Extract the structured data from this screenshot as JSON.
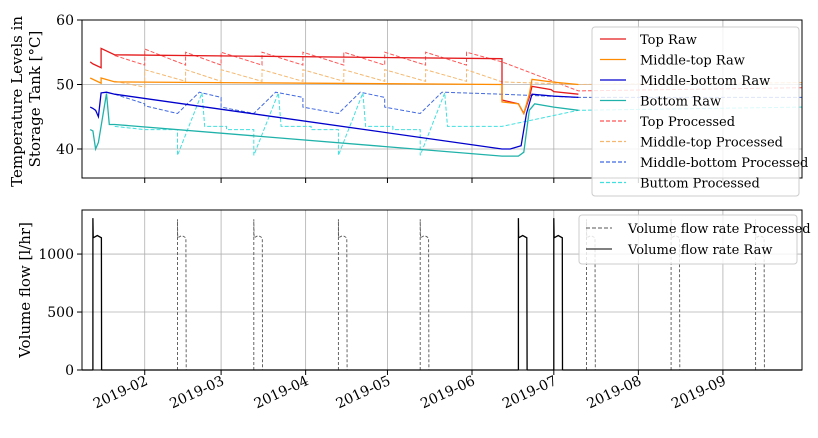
{
  "chart_data": [
    {
      "type": "line",
      "ylabel_lines": [
        "Temperature Levels in",
        "Storage Tank [°C]"
      ],
      "ylim": [
        35.5,
        60
      ],
      "yticks": [
        40,
        50,
        60
      ],
      "grid": true,
      "legend_position": "top-right",
      "series": [
        {
          "name": "Top Raw",
          "color": "#e41a1c",
          "dash": "solid",
          "x": [
            "2019-01-12",
            "2019-01-13",
            "2019-01-14",
            "2019-01-16",
            "2019-01-16",
            "2019-01-21",
            "2019-06-12",
            "2019-06-12",
            "2019-06-18",
            "2019-06-20",
            "2019-06-22",
            "2019-06-23",
            "2019-06-30",
            "2019-07-01",
            "2019-07-10"
          ],
          "y": [
            53.5,
            53.2,
            53.0,
            52.6,
            55.6,
            54.6,
            54.0,
            47.6,
            47.0,
            45.5,
            48.0,
            49.7,
            49.2,
            48.9,
            48.5
          ]
        },
        {
          "name": "Middle-top Raw",
          "color": "#ff8c00",
          "dash": "solid",
          "x": [
            "2019-01-12",
            "2019-01-16",
            "2019-01-16",
            "2019-01-21",
            "2019-06-12",
            "2019-06-12",
            "2019-06-18",
            "2019-06-20",
            "2019-06-22",
            "2019-06-23",
            "2019-06-30",
            "2019-07-10"
          ],
          "y": [
            51.0,
            50.2,
            51.0,
            50.4,
            50.0,
            47.3,
            47.0,
            45.5,
            48.5,
            50.8,
            50.4,
            50.0
          ]
        },
        {
          "name": "Middle-bottom Raw",
          "color": "#0000cd",
          "dash": "solid",
          "x": [
            "2019-01-12",
            "2019-01-13",
            "2019-01-14",
            "2019-01-15",
            "2019-01-16",
            "2019-01-18",
            "2019-01-21",
            "2019-06-12",
            "2019-06-15",
            "2019-06-19",
            "2019-06-21",
            "2019-06-23",
            "2019-07-01",
            "2019-07-10"
          ],
          "y": [
            46.5,
            46.3,
            46.0,
            45.0,
            48.7,
            48.8,
            48.5,
            40.0,
            40.0,
            40.5,
            45.5,
            48.5,
            48.2,
            48.0
          ]
        },
        {
          "name": "Bottom Raw",
          "color": "#20b2aa",
          "dash": "solid",
          "x": [
            "2019-01-12",
            "2019-01-13",
            "2019-01-14",
            "2019-01-15",
            "2019-01-18",
            "2019-01-19",
            "2019-01-21",
            "2019-06-12",
            "2019-06-18",
            "2019-06-20",
            "2019-06-22",
            "2019-06-24",
            "2019-07-01",
            "2019-07-10"
          ],
          "y": [
            43.0,
            42.8,
            40.0,
            41.0,
            48.6,
            43.8,
            43.8,
            38.9,
            38.9,
            39.5,
            46.0,
            47.0,
            46.5,
            46.0
          ]
        },
        {
          "name": "Top Processed",
          "color": "#ff5555",
          "dash": "dashed",
          "x": [
            "2019-01-21",
            "2019-02-01",
            "2019-02-01",
            "2019-02-16",
            "2019-02-16",
            "2019-03-01",
            "2019-03-01",
            "2019-03-16",
            "2019-03-16",
            "2019-03-31",
            "2019-03-31",
            "2019-04-15",
            "2019-04-15",
            "2019-04-30",
            "2019-04-30",
            "2019-05-15",
            "2019-05-15",
            "2019-05-30",
            "2019-05-30",
            "2019-06-12",
            "2019-07-10",
            "2019-09-30"
          ],
          "y": [
            54.5,
            53.0,
            55.5,
            53.0,
            55.0,
            53.0,
            55.0,
            53.0,
            55.0,
            53.0,
            55.0,
            53.0,
            55.0,
            53.0,
            55.0,
            53.0,
            55.0,
            53.0,
            55.0,
            53.5,
            49.0,
            49.5
          ]
        },
        {
          "name": "Middle-top Processed",
          "color": "#f4b870",
          "dash": "dashed",
          "x": [
            "2019-01-21",
            "2019-02-01",
            "2019-02-01",
            "2019-02-16",
            "2019-02-16",
            "2019-03-01",
            "2019-03-01",
            "2019-03-16",
            "2019-03-16",
            "2019-03-31",
            "2019-03-31",
            "2019-04-15",
            "2019-04-15",
            "2019-04-30",
            "2019-04-30",
            "2019-05-15",
            "2019-05-15",
            "2019-05-30",
            "2019-05-30",
            "2019-06-12",
            "2019-07-10",
            "2019-09-30"
          ],
          "y": [
            50.5,
            49.6,
            52.3,
            50.5,
            52.3,
            50.5,
            52.3,
            50.5,
            52.3,
            50.5,
            52.3,
            50.5,
            52.3,
            50.5,
            52.3,
            50.5,
            52.3,
            50.5,
            52.3,
            50.4,
            50.0,
            50.3
          ]
        },
        {
          "name": "Middle-bottom Processed",
          "color": "#4169e1",
          "dash": "dashed",
          "x": [
            "2019-01-21",
            "2019-02-01",
            "2019-02-01",
            "2019-02-13",
            "2019-02-21",
            "2019-03-01",
            "2019-03-01",
            "2019-03-13",
            "2019-03-21",
            "2019-03-31",
            "2019-03-31",
            "2019-04-13",
            "2019-04-21",
            "2019-04-30",
            "2019-04-30",
            "2019-05-13",
            "2019-05-21",
            "2019-06-12",
            "2019-07-10",
            "2019-09-30"
          ],
          "y": [
            48.5,
            47.0,
            46.7,
            45.5,
            48.8,
            48.0,
            46.5,
            45.5,
            48.8,
            48.0,
            46.5,
            45.5,
            48.8,
            48.0,
            46.5,
            45.5,
            48.8,
            48.5,
            48.0,
            48.0
          ]
        },
        {
          "name": "Buttom Processed",
          "color": "#40e0e0",
          "dash": "dashed",
          "x": [
            "2019-01-21",
            "2019-02-01",
            "2019-02-01",
            "2019-02-13",
            "2019-02-13",
            "2019-02-22",
            "2019-02-23",
            "2019-03-03",
            "2019-03-03",
            "2019-03-13",
            "2019-03-13",
            "2019-03-22",
            "2019-03-23",
            "2019-04-03",
            "2019-04-03",
            "2019-04-13",
            "2019-04-13",
            "2019-04-22",
            "2019-04-23",
            "2019-05-03",
            "2019-05-03",
            "2019-05-13",
            "2019-05-13",
            "2019-05-22",
            "2019-05-23",
            "2019-06-12",
            "2019-07-10",
            "2019-09-30"
          ],
          "y": [
            43.5,
            43.0,
            43.0,
            43.0,
            39.0,
            48.7,
            43.5,
            43.5,
            43.0,
            43.0,
            39.0,
            48.7,
            43.5,
            43.5,
            43.0,
            43.0,
            39.0,
            48.7,
            43.5,
            43.5,
            43.0,
            43.0,
            39.0,
            48.7,
            43.5,
            43.5,
            46.0,
            46.5
          ]
        }
      ]
    },
    {
      "type": "line",
      "ylabel": "Volume flow [l/hr]",
      "ylim": [
        0,
        1380
      ],
      "yticks": [
        0,
        500,
        1000
      ],
      "grid": true,
      "legend_position": "top-right",
      "xticks": [
        "2019-02",
        "2019-03",
        "2019-04",
        "2019-05",
        "2019-06",
        "2019-07",
        "2019-08",
        "2019-09"
      ],
      "xlim": [
        "2019-01-09",
        "2019-09-30"
      ],
      "series": [
        {
          "name": "Volume flow rate Processed",
          "color": "#555555",
          "dash": "dashed",
          "pulse_days": [
            "2019-02-13",
            "2019-03-13",
            "2019-04-13",
            "2019-05-13",
            "2019-07-13",
            "2019-08-13",
            "2019-09-13"
          ],
          "pulse_value": 1140,
          "pulse_peak": 1300,
          "pulse_length_days": 3.2
        },
        {
          "name": "Volume flow rate Raw",
          "color": "#000000",
          "dash": "solid",
          "pulse_days": [
            "2019-01-13",
            "2019-06-18",
            "2019-07-01"
          ],
          "pulse_value": 1140,
          "pulse_peak": 1310,
          "pulse_length_days": 3.2
        }
      ]
    }
  ]
}
